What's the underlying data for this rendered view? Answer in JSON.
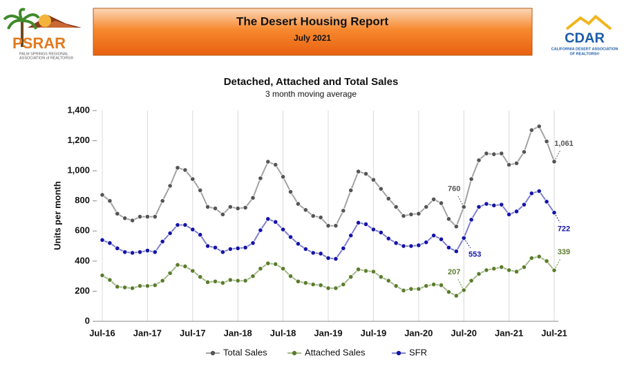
{
  "header": {
    "title": "The Desert Housing Report",
    "subtitle": "July 2021"
  },
  "logos": {
    "left": {
      "name": "PSRAR",
      "tagline_1": "PALM SPRINGS REGIONAL",
      "tagline_2": "ASSOCIATION of REALTORS®"
    },
    "right": {
      "name": "CDAR",
      "tagline_1": "CALIFORNIA DESERT ASSOCIATION",
      "tagline_2": "OF REALTORS®"
    }
  },
  "chart_data": {
    "type": "line",
    "title": "Detached, Attached and Total Sales",
    "subtitle": "3 month moving average",
    "y_label": "Units per month",
    "categories": [
      "Jul-16",
      null,
      null,
      null,
      null,
      null,
      "Jan-17",
      null,
      null,
      null,
      null,
      null,
      "Jul-17",
      null,
      null,
      null,
      null,
      null,
      "Jan-18",
      null,
      null,
      null,
      null,
      null,
      "Jul-18",
      null,
      null,
      null,
      null,
      null,
      "Jan-19",
      null,
      null,
      null,
      null,
      null,
      "Jul-19",
      null,
      null,
      null,
      null,
      null,
      "Jan-20",
      null,
      null,
      null,
      null,
      null,
      "Jul-20",
      null,
      null,
      null,
      null,
      null,
      "Jan-21",
      null,
      null,
      null,
      null,
      null,
      "Jul-21"
    ],
    "ylim": [
      0,
      1400
    ],
    "yticks": [
      0,
      200,
      400,
      600,
      800,
      {
        "value": 1000,
        "label": "1,000"
      },
      {
        "value": 1200,
        "label": "1,200"
      },
      {
        "value": 1400,
        "label": "1,400"
      }
    ],
    "grid": "x",
    "legend": "bottom",
    "series": [
      {
        "name": "Total Sales",
        "color": "#555555",
        "values": [
          840,
          800,
          715,
          685,
          670,
          695,
          695,
          695,
          800,
          900,
          1020,
          1005,
          945,
          870,
          760,
          750,
          710,
          760,
          750,
          755,
          820,
          950,
          1060,
          1040,
          960,
          860,
          780,
          740,
          700,
          690,
          635,
          635,
          735,
          870,
          995,
          980,
          940,
          880,
          815,
          760,
          700,
          710,
          715,
          760,
          810,
          785,
          680,
          630,
          760,
          945,
          1070,
          1115,
          1110,
          1115,
          1040,
          1050,
          1125,
          1270,
          1295,
          1195,
          1061
        ],
        "value_labels": [
          null,
          null,
          null,
          null,
          null,
          null,
          null,
          null,
          null,
          null,
          null,
          null,
          null,
          null,
          null,
          null,
          null,
          null,
          null,
          null,
          null,
          null,
          null,
          null,
          null,
          null,
          null,
          null,
          null,
          null,
          null,
          null,
          null,
          null,
          null,
          null,
          null,
          null,
          null,
          null,
          null,
          null,
          null,
          null,
          null,
          null,
          null,
          null,
          "760",
          null,
          null,
          null,
          null,
          null,
          null,
          null,
          null,
          null,
          null,
          null,
          "1,061"
        ]
      },
      {
        "name": "Attached Sales",
        "color": "#5b7d2b",
        "values": [
          305,
          275,
          230,
          225,
          220,
          235,
          235,
          240,
          270,
          320,
          375,
          365,
          335,
          295,
          260,
          265,
          255,
          275,
          270,
          270,
          300,
          350,
          385,
          380,
          350,
          300,
          265,
          255,
          245,
          240,
          220,
          220,
          245,
          295,
          345,
          335,
          330,
          295,
          270,
          235,
          205,
          215,
          215,
          235,
          245,
          240,
          195,
          170,
          207,
          270,
          315,
          340,
          350,
          360,
          340,
          330,
          360,
          420,
          430,
          400,
          339
        ],
        "value_labels": [
          null,
          null,
          null,
          null,
          null,
          null,
          null,
          null,
          null,
          null,
          null,
          null,
          null,
          null,
          null,
          null,
          null,
          null,
          null,
          null,
          null,
          null,
          null,
          null,
          null,
          null,
          null,
          null,
          null,
          null,
          null,
          null,
          null,
          null,
          null,
          null,
          null,
          null,
          null,
          null,
          null,
          null,
          null,
          null,
          null,
          null,
          null,
          null,
          "207",
          null,
          null,
          null,
          null,
          null,
          null,
          null,
          null,
          null,
          null,
          null,
          "339"
        ]
      },
      {
        "name": "SFR",
        "color": "#1414a8",
        "values": [
          540,
          520,
          485,
          460,
          455,
          460,
          470,
          460,
          530,
          585,
          640,
          640,
          610,
          575,
          500,
          490,
          460,
          480,
          485,
          490,
          520,
          605,
          680,
          660,
          610,
          560,
          515,
          480,
          455,
          450,
          420,
          415,
          485,
          570,
          655,
          645,
          610,
          590,
          550,
          520,
          500,
          500,
          505,
          525,
          570,
          545,
          490,
          465,
          553,
          675,
          760,
          780,
          770,
          775,
          710,
          730,
          775,
          850,
          865,
          795,
          722
        ],
        "value_labels": [
          null,
          null,
          null,
          null,
          null,
          null,
          null,
          null,
          null,
          null,
          null,
          null,
          null,
          null,
          null,
          null,
          null,
          null,
          null,
          null,
          null,
          null,
          null,
          null,
          null,
          null,
          null,
          null,
          null,
          null,
          null,
          null,
          null,
          null,
          null,
          null,
          null,
          null,
          null,
          null,
          null,
          null,
          null,
          null,
          null,
          null,
          null,
          null,
          "553",
          null,
          null,
          null,
          null,
          null,
          null,
          null,
          null,
          null,
          null,
          null,
          "722"
        ]
      }
    ]
  }
}
